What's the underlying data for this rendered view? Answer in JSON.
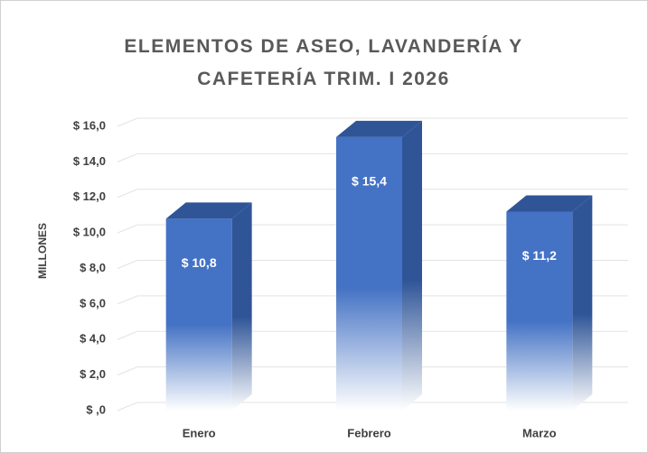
{
  "chart_data": {
    "type": "bar3d",
    "title": "ELEMENTOS DE ASEO, LAVANDERÍA Y CAFETERÍA TRIM. I 2026",
    "y_label": "MILLONES",
    "categories": [
      "Enero",
      "Febrero",
      "Marzo"
    ],
    "values": [
      10.8,
      15.4,
      11.2
    ],
    "value_labels": [
      "$ 10,8",
      "$ 15,4",
      "$ 11,2"
    ],
    "color": "#4472c4",
    "ylim": [
      0,
      16
    ],
    "yticks": [
      {
        "value": 0,
        "label": "$ ,0"
      },
      {
        "value": 2,
        "label": "$ 2,0"
      },
      {
        "value": 4,
        "label": "$ 4,0"
      },
      {
        "value": 6,
        "label": "$ 6,0"
      },
      {
        "value": 8,
        "label": "$ 8,0"
      },
      {
        "value": 10,
        "label": "$ 10,0"
      },
      {
        "value": 12,
        "label": "$ 12,0"
      },
      {
        "value": 14,
        "label": "$ 14,0"
      },
      {
        "value": 16,
        "label": "$ 16,0"
      }
    ],
    "grid": true
  }
}
